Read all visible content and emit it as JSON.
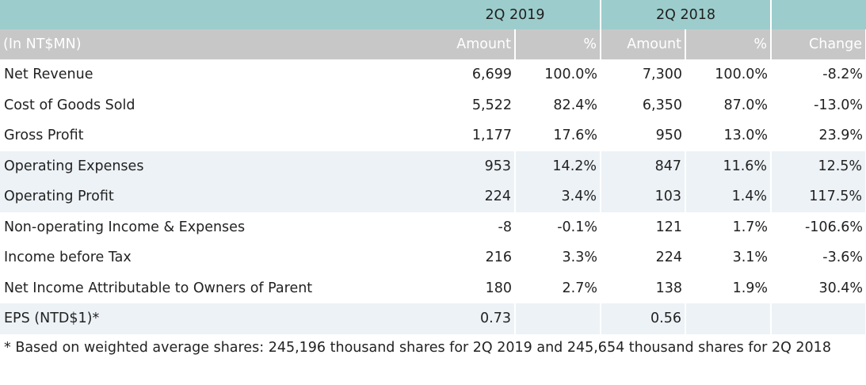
{
  "table": {
    "periods": [
      "2Q 2019",
      "2Q 2018"
    ],
    "unit_label": "(In NT$MN)",
    "col_headers": [
      "Amount",
      "%",
      "Amount",
      "%",
      "Change"
    ],
    "rows": [
      {
        "label": "Net Revenue",
        "a1": "6,699",
        "p1": "100.0%",
        "a2": "7,300",
        "p2": "100.0%",
        "chg": "-8.2%"
      },
      {
        "label": "Cost of Goods Sold",
        "a1": "5,522",
        "p1": "82.4%",
        "a2": "6,350",
        "p2": "87.0%",
        "chg": "-13.0%"
      },
      {
        "label": "Gross Profit",
        "a1": "1,177",
        "p1": "17.6%",
        "a2": "950",
        "p2": "13.0%",
        "chg": "23.9%"
      },
      {
        "label": "Operating Expenses",
        "a1": "953",
        "p1": "14.2%",
        "a2": "847",
        "p2": "11.6%",
        "chg": "12.5%"
      },
      {
        "label": "Operating Profit",
        "a1": "224",
        "p1": "3.4%",
        "a2": "103",
        "p2": "1.4%",
        "chg": "117.5%"
      },
      {
        "label": "Non-operating Income & Expenses",
        "a1": "-8",
        "p1": "-0.1%",
        "a2": "121",
        "p2": "1.7%",
        "chg": "-106.6%"
      },
      {
        "label": "Income before Tax",
        "a1": "216",
        "p1": "3.3%",
        "a2": "224",
        "p2": "3.1%",
        "chg": "-3.6%"
      },
      {
        "label": "Net Income Attributable to Owners of Parent",
        "a1": "180",
        "p1": "2.7%",
        "a2": "138",
        "p2": "1.9%",
        "chg": "30.4%"
      },
      {
        "label": "EPS (NTD$1)*",
        "a1": "0.73",
        "p1": "",
        "a2": "0.56",
        "p2": "",
        "chg": ""
      }
    ]
  },
  "footnote": "* Based on weighted average shares: 245,196 thousand shares for 2Q 2019 and 245,654 thousand shares for 2Q 2018",
  "colors": {
    "header_teal": "#9ccdcc",
    "subheader_gray": "#c7c7c7",
    "row_shade": "#edf2f6"
  }
}
